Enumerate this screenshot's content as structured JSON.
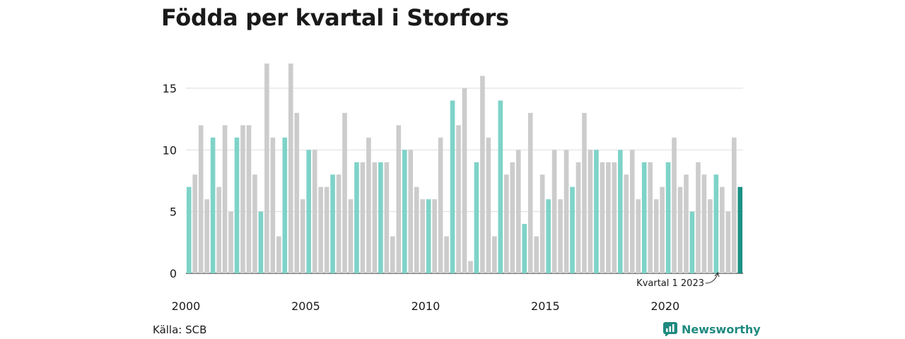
{
  "title": "Födda per kvartal i Storfors",
  "source": "Källa: SCB",
  "brand": {
    "name": "Newsworthy",
    "icon": "newsworthy-logo-icon"
  },
  "colors": {
    "q1": "#7ed3c8",
    "other": "#cccccc",
    "latest": "#1c9185",
    "grid": "#dddddd",
    "axis": "#333333"
  },
  "chart_data": {
    "type": "bar",
    "title": "Födda per kvartal i Storfors",
    "xlabel": "",
    "ylabel": "",
    "ylim": [
      0,
      19
    ],
    "yticks": [
      0,
      5,
      10,
      15
    ],
    "xtick_labels": [
      "2000",
      "2005",
      "2010",
      "2015",
      "2020"
    ],
    "start_year": 2000,
    "start_quarter": 1,
    "values": [
      7,
      8,
      12,
      6,
      11,
      7,
      12,
      5,
      11,
      12,
      12,
      8,
      5,
      17,
      11,
      3,
      11,
      17,
      13,
      6,
      10,
      10,
      7,
      7,
      8,
      8,
      13,
      6,
      9,
      9,
      11,
      9,
      9,
      9,
      3,
      12,
      10,
      10,
      7,
      6,
      6,
      6,
      11,
      3,
      14,
      12,
      15,
      1,
      9,
      16,
      11,
      3,
      14,
      8,
      9,
      10,
      4,
      13,
      3,
      8,
      6,
      10,
      6,
      10,
      7,
      9,
      13,
      10,
      10,
      9,
      9,
      9,
      10,
      8,
      10,
      6,
      9,
      9,
      6,
      7,
      9,
      11,
      7,
      8,
      5,
      9,
      8,
      6,
      8,
      7,
      5,
      11,
      7
    ],
    "annotation": "Kvartal 1 2023"
  }
}
